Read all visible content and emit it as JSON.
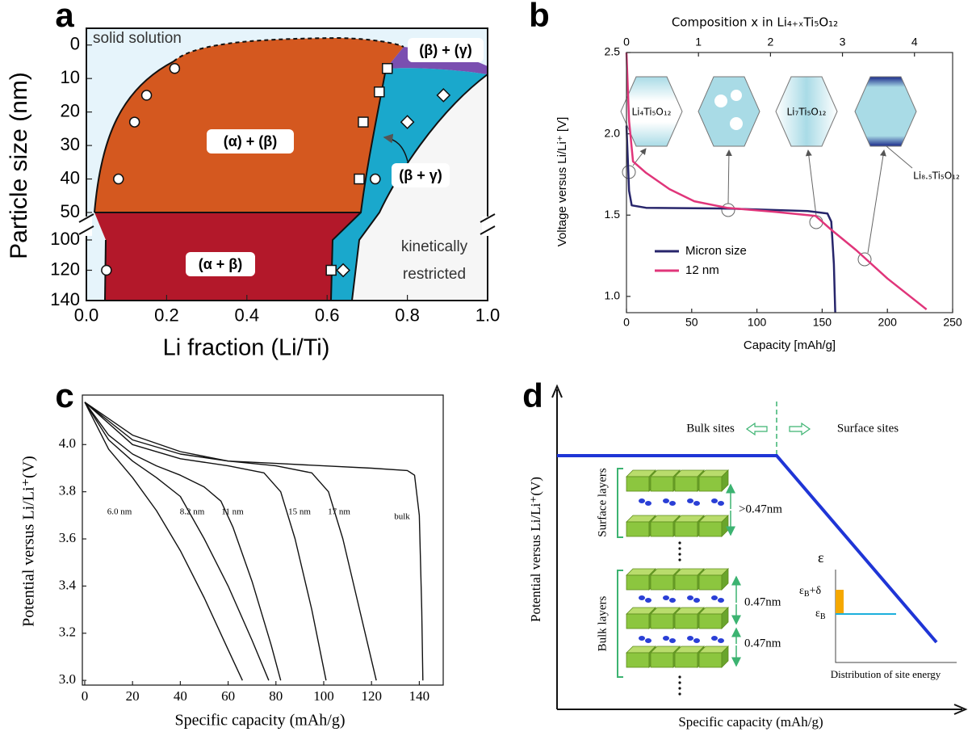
{
  "chart_data": [
    {
      "label": "a",
      "type": "scatter",
      "ylabel": "Particle size (nm)",
      "xlabel": "Li fraction (Li/Ti)",
      "xlim": [
        0,
        1
      ],
      "xticks": [
        {
          "value": 0,
          "label": "0.0"
        },
        0.2,
        0.4,
        0.6,
        0.8,
        {
          "value": 1,
          "label": "1.0"
        }
      ],
      "ylim": [
        140,
        -5
      ],
      "ybreak": [
        50,
        100
      ],
      "yticks": [
        0,
        10,
        20,
        30,
        40,
        50,
        100,
        120,
        140
      ],
      "series": [
        {
          "marker": "circle",
          "color": "#ffffff",
          "x": [
            0.22,
            0.15,
            0.12,
            0.08,
            0.05,
            0.72
          ],
          "values": [
            7,
            15,
            23,
            40,
            120,
            40
          ]
        },
        {
          "marker": "square",
          "color": "#ffffff",
          "x": [
            0.75,
            0.73,
            0.69,
            0.68,
            0.61
          ],
          "values": [
            7,
            14,
            23,
            40,
            120
          ]
        },
        {
          "marker": "diamond",
          "color": "#ffffff",
          "x": [
            0.89,
            0.8,
            0.64
          ],
          "values": [
            15,
            23,
            120
          ]
        }
      ],
      "annotations": [
        "solid solution",
        "(α) + (β)",
        "(α + β)",
        "(β) + (γ)",
        "(β + γ)",
        "kinetically",
        "restricted"
      ]
    },
    {
      "label": "b",
      "type": "line",
      "ylabel": "Voltage versus Li/Li⁺ [V]",
      "xlabel": "Capacity [mAh/g]",
      "x2label": "Composition x in Li₄₊ₓTi₅O₁₂",
      "xlim": [
        0,
        250
      ],
      "xticks": [
        0,
        50,
        100,
        150,
        200,
        250
      ],
      "x2lim": [
        0,
        4.53
      ],
      "x2ticks": [
        0,
        1,
        2,
        3,
        4
      ],
      "ylim": [
        0.9,
        2.5
      ],
      "yticks": [
        {
          "value": 1,
          "label": "1.0"
        },
        1.5,
        {
          "value": 2,
          "label": "2.0"
        },
        2.5
      ],
      "legend": "lower left",
      "series": [
        {
          "name": "Micron size",
          "color": "#27256b",
          "x": [
            0,
            1,
            2,
            4,
            15,
            80,
            139,
            154,
            157,
            159,
            160
          ],
          "values": [
            2.05,
            1.85,
            1.65,
            1.56,
            1.545,
            1.54,
            1.525,
            1.51,
            1.46,
            1.2,
            0.9
          ]
        },
        {
          "name": "12 nm",
          "color": "#e0357a",
          "x": [
            0,
            2,
            5,
            15,
            33,
            52,
            77,
            114,
            145,
            157,
            176,
            200,
            230
          ],
          "values": [
            2.5,
            2.08,
            1.83,
            1.76,
            1.66,
            1.585,
            1.545,
            1.52,
            1.495,
            1.41,
            1.285,
            1.11,
            0.92
          ]
        }
      ],
      "annotations": [
        "Li₄Ti₅O₁₂",
        "Li₇Ti₅O₁₂",
        "Li₈.₅Ti₅O₁₂"
      ]
    },
    {
      "label": "c",
      "type": "line",
      "ylabel": "Potential versus Li/Li⁺(V)",
      "xlabel": "Specific capacity (mAh/g)",
      "xlim": [
        -1,
        150
      ],
      "xticks": [
        0,
        20,
        40,
        60,
        80,
        100,
        120,
        140
      ],
      "ylim": [
        2.98,
        4.21
      ],
      "yticks": [
        {
          "value": 3,
          "label": "3.0"
        },
        3.2,
        3.4,
        3.6,
        3.8,
        {
          "value": 4,
          "label": "4.0"
        }
      ],
      "series": [
        {
          "name": "6.0 nm",
          "color": "#111111",
          "x": [
            0,
            10,
            20,
            30,
            40,
            50,
            60,
            66
          ],
          "values": [
            4.18,
            3.98,
            3.86,
            3.72,
            3.55,
            3.35,
            3.13,
            3.0
          ]
        },
        {
          "name": "8.2 nm",
          "color": "#111111",
          "x": [
            0,
            10,
            20,
            30,
            40,
            50,
            60,
            70,
            77
          ],
          "values": [
            4.18,
            4.02,
            3.93,
            3.86,
            3.78,
            3.6,
            3.4,
            3.17,
            3.0
          ]
        },
        {
          "name": "11 nm",
          "color": "#111111",
          "x": [
            0,
            10,
            20,
            30,
            40,
            50,
            57,
            62,
            70,
            78,
            82
          ],
          "values": [
            4.18,
            4.04,
            3.96,
            3.91,
            3.87,
            3.82,
            3.76,
            3.65,
            3.42,
            3.15,
            3.0
          ]
        },
        {
          "name": "15 nm",
          "color": "#111111",
          "x": [
            0,
            20,
            40,
            60,
            75,
            82,
            88,
            95,
            101
          ],
          "values": [
            4.18,
            4.0,
            3.94,
            3.91,
            3.88,
            3.8,
            3.6,
            3.3,
            3.0
          ]
        },
        {
          "name": "17 nm",
          "color": "#111111",
          "x": [
            0,
            20,
            40,
            60,
            80,
            95,
            102,
            108,
            115,
            122
          ],
          "values": [
            4.18,
            4.02,
            3.96,
            3.93,
            3.91,
            3.88,
            3.8,
            3.6,
            3.3,
            3.0
          ]
        },
        {
          "name": "bulk",
          "color": "#111111",
          "x": [
            0,
            20,
            40,
            60,
            80,
            100,
            120,
            135,
            138,
            140,
            141,
            141.5
          ],
          "values": [
            4.18,
            4.04,
            3.97,
            3.93,
            3.92,
            3.91,
            3.9,
            3.89,
            3.87,
            3.7,
            3.3,
            3.0
          ]
        }
      ]
    },
    {
      "label": "d",
      "type": "schematic",
      "ylabel": "Potential versus Li/Li⁺(V)",
      "xlabel": "Specific capacity (mAh/g)",
      "annotations": [
        "Bulk sites",
        "Surface sites",
        "Surface layers",
        "Bulk layers",
        ">0.47nm",
        "0.47nm",
        "0.47nm",
        "Distribution of site energy"
      ],
      "energy_axis": "ε",
      "site_energy_labels": [
        {
          "parts": [
            "ε",
            "B",
            "+δ"
          ]
        },
        {
          "parts": [
            "ε",
            "B"
          ]
        }
      ]
    }
  ]
}
